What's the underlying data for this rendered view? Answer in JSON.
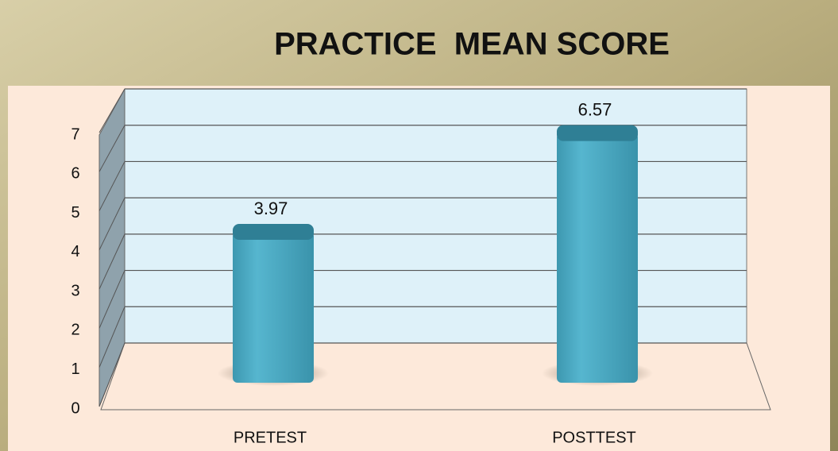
{
  "chart_data": {
    "type": "bar",
    "title": "PRACTICE  MEAN SCORE",
    "categories": [
      "PRETEST",
      "POSTTEST"
    ],
    "values": [
      3.97,
      6.57
    ],
    "color": "#4bacc6",
    "ylim": [
      0,
      7
    ],
    "yticks": [
      0,
      1,
      2,
      3,
      4,
      5,
      6,
      7
    ],
    "grid": true
  }
}
